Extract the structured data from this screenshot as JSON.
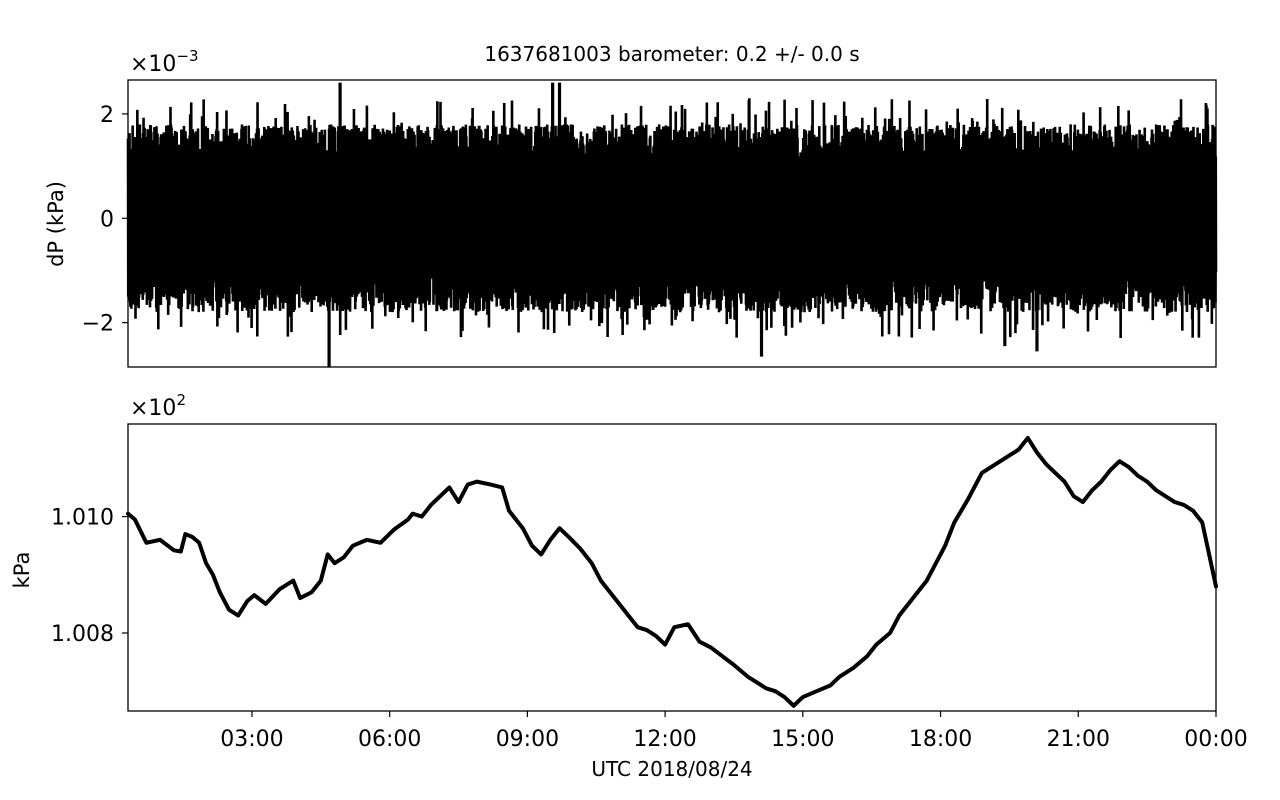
{
  "figure": {
    "title": "1637681003 barometer: 0.2 +/- 0.0 s",
    "xlabel": "UTC 2018/08/24"
  },
  "chart_data": [
    {
      "type": "line",
      "ylabel": "dP (kPa)",
      "y_multiplier": "×10",
      "y_exponent": "−3",
      "ylim": [
        -2.85,
        2.65
      ],
      "y_ticks": [
        -2,
        0,
        2
      ],
      "y_tick_labels": [
        "−2",
        "0",
        "2"
      ],
      "x_hours_range": [
        0.3,
        24.0
      ],
      "x_tick_labels_visible": false,
      "series": [
        {
          "color": "#000000",
          "description_values": "dense noise, typical envelope ±1.8, occasional peaks ±2.3",
          "envelope_upper": 1.8,
          "envelope_lower": -1.8,
          "spikes": [
            {
              "t": 4.92,
              "v": 2.6
            },
            {
              "t": 4.68,
              "v": -2.85
            },
            {
              "t": 9.55,
              "v": 2.6
            },
            {
              "t": 9.7,
              "v": 2.6
            },
            {
              "t": 14.1,
              "v": -2.65
            },
            {
              "t": 19.4,
              "v": -2.45
            },
            {
              "t": 20.1,
              "v": -2.55
            }
          ]
        }
      ]
    },
    {
      "type": "line",
      "ylabel": "kPa",
      "y_multiplier": "×10",
      "y_exponent": "2",
      "ylim": [
        1.00666,
        1.01159
      ],
      "y_ticks": [
        1.008,
        1.01
      ],
      "y_tick_labels": [
        "1.008",
        "1.010"
      ],
      "x_hours_range": [
        0.3,
        24.0
      ],
      "x_ticks_hours": [
        3,
        6,
        9,
        12,
        15,
        18,
        21,
        24
      ],
      "x_tick_labels": [
        "03:00",
        "06:00",
        "09:00",
        "12:00",
        "15:00",
        "18:00",
        "21:00",
        "00:00"
      ],
      "series": [
        {
          "color": "#000000",
          "x_hours": [
            0.3,
            0.45,
            0.7,
            1.0,
            1.3,
            1.45,
            1.55,
            1.7,
            1.85,
            2.0,
            2.15,
            2.3,
            2.5,
            2.7,
            2.9,
            3.05,
            3.3,
            3.6,
            3.9,
            4.05,
            4.3,
            4.5,
            4.65,
            4.8,
            5.0,
            5.2,
            5.5,
            5.8,
            6.1,
            6.4,
            6.5,
            6.7,
            6.9,
            7.1,
            7.3,
            7.5,
            7.7,
            7.9,
            8.2,
            8.45,
            8.6,
            8.9,
            9.1,
            9.3,
            9.5,
            9.7,
            9.9,
            10.15,
            10.4,
            10.6,
            10.8,
            11.0,
            11.2,
            11.4,
            11.6,
            11.8,
            12.0,
            12.2,
            12.5,
            12.75,
            13.0,
            13.25,
            13.5,
            13.8,
            14.0,
            14.2,
            14.4,
            14.6,
            14.8,
            15.0,
            15.3,
            15.45,
            15.6,
            15.8,
            16.1,
            16.4,
            16.6,
            16.9,
            17.1,
            17.3,
            17.5,
            17.7,
            17.9,
            18.1,
            18.3,
            18.6,
            18.9,
            19.1,
            19.4,
            19.7,
            19.9,
            20.1,
            20.3,
            20.5,
            20.7,
            20.9,
            21.1,
            21.3,
            21.5,
            21.7,
            21.9,
            22.1,
            22.3,
            22.5,
            22.7,
            22.9,
            23.1,
            23.3,
            23.5,
            23.7,
            24.0
          ],
          "values": [
            1.01005,
            1.00995,
            1.00955,
            1.0096,
            1.00942,
            1.0094,
            1.0097,
            1.00965,
            1.00955,
            1.0092,
            1.009,
            1.0087,
            1.0084,
            1.0083,
            1.00855,
            1.00865,
            1.0085,
            1.00875,
            1.0089,
            1.0086,
            1.0087,
            1.0089,
            1.00935,
            1.0092,
            1.0093,
            1.0095,
            1.0096,
            1.00955,
            1.00978,
            1.00995,
            1.01005,
            1.01,
            1.0102,
            1.01035,
            1.0105,
            1.01025,
            1.01055,
            1.0106,
            1.01055,
            1.0105,
            1.0101,
            1.0098,
            1.0095,
            1.00935,
            1.0096,
            1.0098,
            1.00965,
            1.00945,
            1.0092,
            1.0089,
            1.0087,
            1.0085,
            1.0083,
            1.0081,
            1.00805,
            1.00795,
            1.0078,
            1.0081,
            1.00815,
            1.00785,
            1.00775,
            1.0076,
            1.00745,
            1.00725,
            1.00715,
            1.00705,
            1.007,
            1.0069,
            1.00675,
            1.0069,
            1.007,
            1.00705,
            1.0071,
            1.00725,
            1.0074,
            1.0076,
            1.0078,
            1.008,
            1.0083,
            1.0085,
            1.0087,
            1.0089,
            1.0092,
            1.0095,
            1.0099,
            1.0103,
            1.01075,
            1.01085,
            1.011,
            1.01115,
            1.01135,
            1.0111,
            1.0109,
            1.01075,
            1.0106,
            1.01035,
            1.01025,
            1.01045,
            1.0106,
            1.0108,
            1.01095,
            1.01085,
            1.0107,
            1.0106,
            1.01045,
            1.01035,
            1.01025,
            1.0102,
            1.0101,
            1.0099,
            1.0088
          ]
        }
      ]
    }
  ]
}
